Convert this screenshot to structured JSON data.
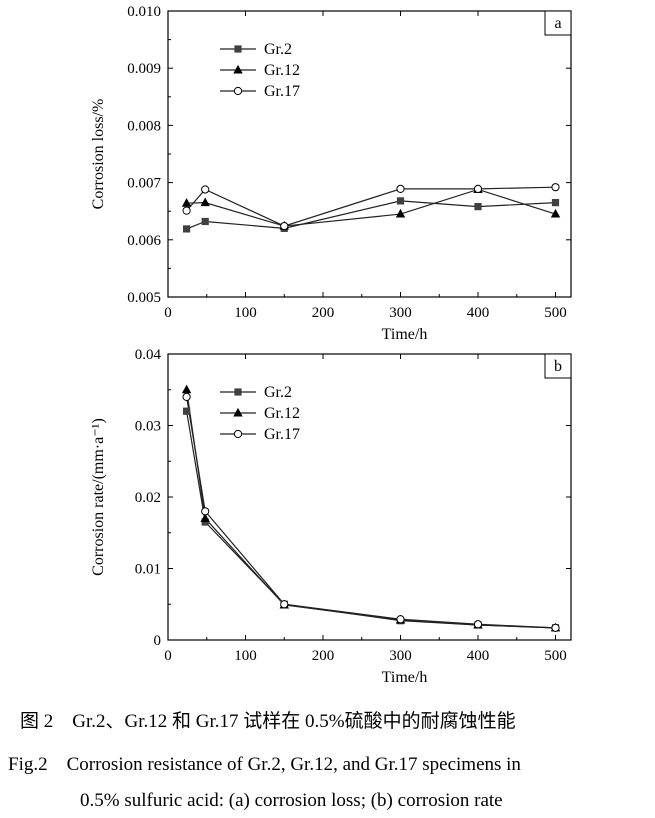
{
  "chart_data": [
    {
      "type": "line",
      "panel": "a",
      "xlabel": "Time/h",
      "ylabel": "Corrosion loss/%",
      "xlim": [
        0,
        520
      ],
      "ylim": [
        0.005,
        0.01
      ],
      "xticks": [
        0,
        100,
        200,
        300,
        400,
        500
      ],
      "yticks": [
        0.005,
        0.006,
        0.007,
        0.008,
        0.009,
        0.01
      ],
      "ytick_labels": [
        "0.005",
        "0.006",
        "0.007",
        "0.008",
        "0.009",
        "0.010"
      ],
      "legend_position": "top-left",
      "series": [
        {
          "name": "Gr.2",
          "marker": "square",
          "x": [
            24,
            48,
            150,
            300,
            400,
            500
          ],
          "values": [
            0.00619,
            0.00632,
            0.0062,
            0.00668,
            0.00658,
            0.00665
          ]
        },
        {
          "name": "Gr.12",
          "marker": "triangle",
          "x": [
            24,
            48,
            150,
            300,
            400,
            500
          ],
          "values": [
            0.00664,
            0.00665,
            0.00624,
            0.00645,
            0.00688,
            0.00645
          ]
        },
        {
          "name": "Gr.17",
          "marker": "circle",
          "x": [
            24,
            48,
            150,
            300,
            400,
            500
          ],
          "values": [
            0.00651,
            0.00688,
            0.00624,
            0.00689,
            0.00689,
            0.00692
          ]
        }
      ]
    },
    {
      "type": "line",
      "panel": "b",
      "xlabel": "Time/h",
      "ylabel": "Corrosion rate/(mm·a⁻¹)",
      "xlim": [
        0,
        520
      ],
      "ylim": [
        0,
        0.04
      ],
      "xticks": [
        0,
        100,
        200,
        300,
        400,
        500
      ],
      "yticks": [
        0,
        0.01,
        0.02,
        0.03,
        0.04
      ],
      "ytick_labels": [
        "0",
        "0.01",
        "0.02",
        "0.03",
        "0.04"
      ],
      "legend_position": "top-left",
      "series": [
        {
          "name": "Gr.2",
          "marker": "square",
          "x": [
            24,
            48,
            150,
            300,
            400,
            500
          ],
          "values": [
            0.032,
            0.0165,
            0.005,
            0.0027,
            0.0021,
            0.0017
          ]
        },
        {
          "name": "Gr.12",
          "marker": "triangle",
          "x": [
            24,
            48,
            150,
            300,
            400,
            500
          ],
          "values": [
            0.035,
            0.017,
            0.0049,
            0.0028,
            0.0021,
            0.0017
          ]
        },
        {
          "name": "Gr.17",
          "marker": "circle",
          "x": [
            24,
            48,
            150,
            300,
            400,
            500
          ],
          "values": [
            0.034,
            0.018,
            0.005,
            0.0029,
            0.0022,
            0.0017
          ]
        }
      ]
    }
  ],
  "caption": {
    "cn": "图 2　Gr.2、Gr.12 和 Gr.17 试样在 0.5%硫酸中的耐腐蚀性能",
    "en_line1": "Fig.2　Corrosion resistance of Gr.2, Gr.12, and Gr.17 specimens in",
    "en_line2": "0.5% sulfuric acid: (a) corrosion loss; (b) corrosion rate"
  }
}
